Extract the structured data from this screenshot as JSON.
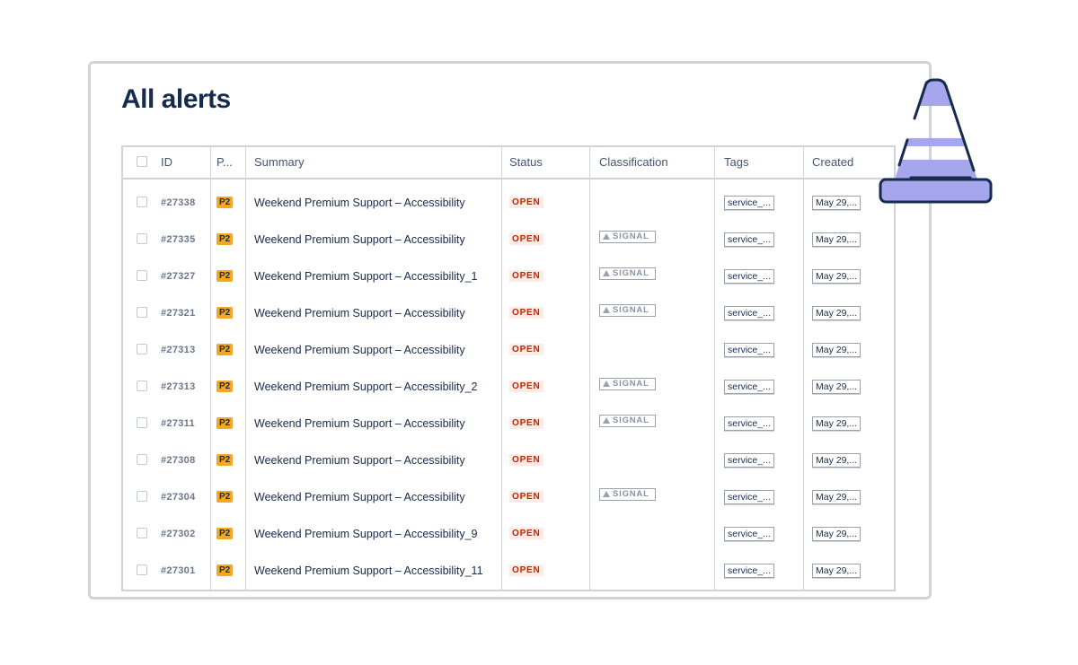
{
  "page": {
    "title": "All alerts"
  },
  "table": {
    "columns": {
      "id": "ID",
      "priority": "P...",
      "summary": "Summary",
      "status": "Status",
      "classification": "Classification",
      "tags": "Tags",
      "created": "Created"
    },
    "rows": [
      {
        "id": "#27338",
        "priority": "P2",
        "summary": "Weekend Premium Support – Accessibility",
        "status": "OPEN",
        "classification": "",
        "tag": "service_...",
        "created": "May 29,..."
      },
      {
        "id": "#27335",
        "priority": "P2",
        "summary": "Weekend Premium Support – Accessibility",
        "status": "OPEN",
        "classification": "SIGNAL",
        "tag": "service_...",
        "created": "May 29,..."
      },
      {
        "id": "#27327",
        "priority": "P2",
        "summary": "Weekend Premium Support – Accessibility_1",
        "status": "OPEN",
        "classification": "SIGNAL",
        "tag": "service_...",
        "created": "May 29,..."
      },
      {
        "id": "#27321",
        "priority": "P2",
        "summary": "Weekend Premium Support – Accessibility",
        "status": "OPEN",
        "classification": "SIGNAL",
        "tag": "service_...",
        "created": "May 29,..."
      },
      {
        "id": "#27313",
        "priority": "P2",
        "summary": "Weekend Premium Support – Accessibility",
        "status": "OPEN",
        "classification": "",
        "tag": "service_...",
        "created": "May 29,..."
      },
      {
        "id": "#27313",
        "priority": "P2",
        "summary": "Weekend Premium Support – Accessibility_2",
        "status": "OPEN",
        "classification": "SIGNAL",
        "tag": "service_...",
        "created": "May 29,..."
      },
      {
        "id": "#27311",
        "priority": "P2",
        "summary": "Weekend Premium Support – Accessibility",
        "status": "OPEN",
        "classification": "SIGNAL",
        "tag": "service_...",
        "created": "May 29,..."
      },
      {
        "id": "#27308",
        "priority": "P2",
        "summary": "Weekend Premium Support – Accessibility",
        "status": "OPEN",
        "classification": "",
        "tag": "service_...",
        "created": "May 29,..."
      },
      {
        "id": "#27304",
        "priority": "P2",
        "summary": "Weekend Premium Support – Accessibility",
        "status": "OPEN",
        "classification": "SIGNAL",
        "tag": "service_...",
        "created": "May 29,..."
      },
      {
        "id": "#27302",
        "priority": "P2",
        "summary": "Weekend Premium Support – Accessibility_9",
        "status": "OPEN",
        "classification": "",
        "tag": "service_...",
        "created": "May 29,..."
      },
      {
        "id": "#27301",
        "priority": "P2",
        "summary": "Weekend Premium Support – Accessibility_11",
        "status": "OPEN",
        "classification": "",
        "tag": "service_...",
        "created": "May 29,..."
      }
    ]
  },
  "colors": {
    "priority_badge": "#f5a623",
    "status_text": "#bf2600",
    "status_bg": "#ffebe6",
    "cone_fill": "#a5a6ec",
    "title": "#172b4d"
  },
  "icons": {
    "cone": "traffic-cone-icon",
    "signal": "warning-triangle-icon"
  }
}
